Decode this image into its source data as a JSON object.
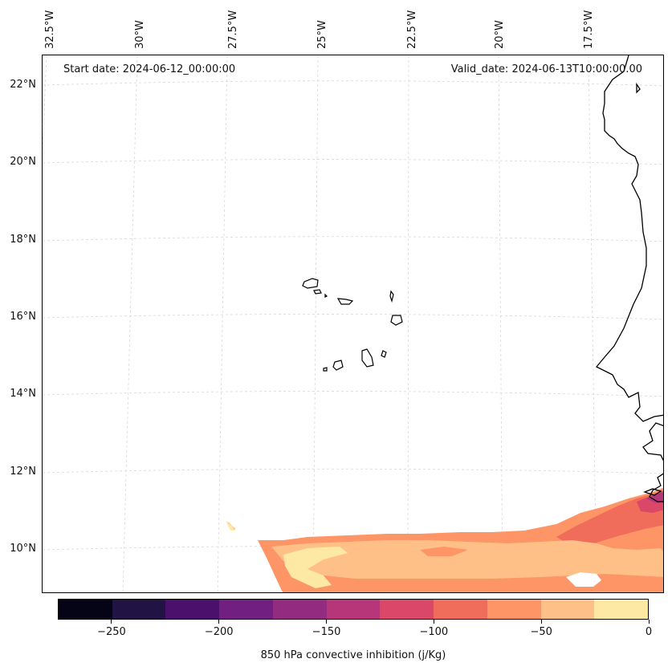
{
  "map": {
    "start_date": "Start date: 2024-06-12_00:00:00",
    "valid_date": "Valid_date: 2024-06-13T10:00:00.00",
    "lat_labels": [
      "22°N",
      "20°N",
      "18°N",
      "16°N",
      "14°N",
      "12°N",
      "10°N"
    ],
    "lon_labels": [
      "32.5°W",
      "30°W",
      "27.5°W",
      "25°W",
      "22.5°W",
      "20°W",
      "17.5°W"
    ],
    "field_variable": "850 hPa convective inhibition"
  },
  "colorbar": {
    "label": "850 hPa convective inhibition (j/Kg)",
    "tick_labels": [
      "−250",
      "−200",
      "−150",
      "−100",
      "−50",
      "0"
    ],
    "levels": [
      -275,
      -250,
      -225,
      -200,
      -175,
      -150,
      -125,
      -100,
      -75,
      -50,
      -25,
      0
    ],
    "colors": [
      "#050416",
      "#211344",
      "#4b0f6c",
      "#711f81",
      "#932b80",
      "#b7367a",
      "#da4768",
      "#f16d5b",
      "#fd9567",
      "#fec086",
      "#fde8a4"
    ]
  }
}
